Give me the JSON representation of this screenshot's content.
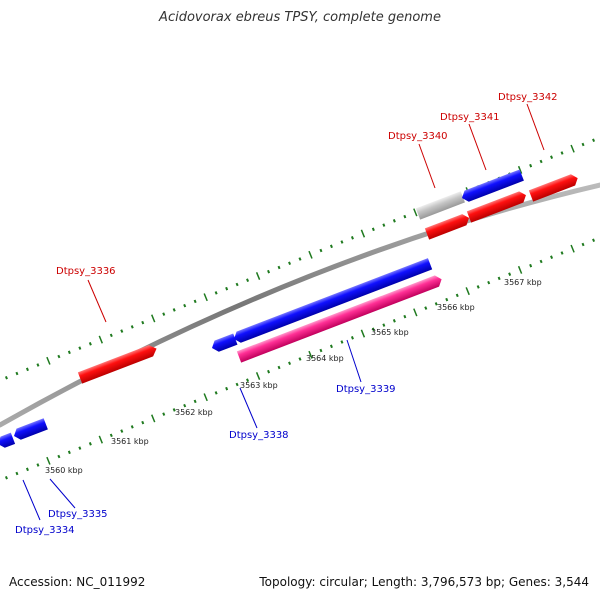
{
  "title": "Acidovorax ebreus TPSY, complete genome",
  "footer": {
    "accession": "Accession: NC_011992",
    "summary": "Topology: circular; Length: 3,796,573 bp; Genes: 3,544"
  },
  "colors": {
    "forward_gene": "#ff0000",
    "reverse_gene": "#0000ff",
    "highlight_gene": "#ff3399",
    "grey_gene": "#bbbbbb",
    "backbone": "#888888",
    "ticks": "#1f7a1f",
    "forward_label": "#cc0000",
    "reverse_label": "#0000cc"
  },
  "scale_labels": [
    "3560 kbp",
    "3561 kbp",
    "3562 kbp",
    "3563 kbp",
    "3564 kbp",
    "3565 kbp",
    "3566 kbp",
    "3567 kbp"
  ],
  "genes": {
    "forward": [
      "Dtpsy_3336",
      "Dtpsy_3340",
      "Dtpsy_3341",
      "Dtpsy_3342"
    ],
    "reverse": [
      "Dtpsy_3334",
      "Dtpsy_3335",
      "Dtpsy_3338",
      "Dtpsy_3339"
    ]
  }
}
